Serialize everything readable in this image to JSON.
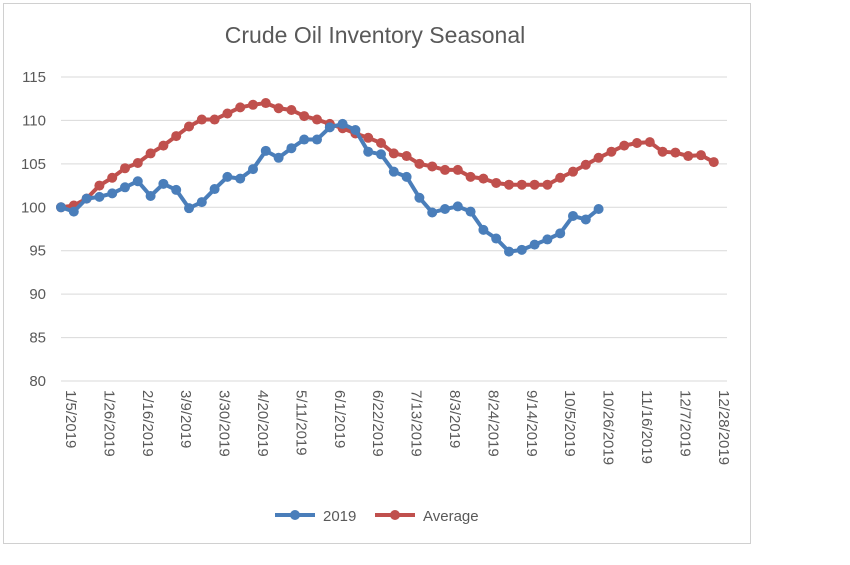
{
  "chart_data": {
    "type": "line",
    "title": "Crude Oil Inventory Seasonal",
    "xlabel": "",
    "ylabel": "",
    "ylim": [
      80,
      115
    ],
    "yticks": [
      "80",
      "85",
      "90",
      "95",
      "100",
      "105",
      "110",
      "115"
    ],
    "x_tick_labels": [
      "1/5/2019",
      "1/26/2019",
      "2/16/2019",
      "3/9/2019",
      "3/30/2019",
      "4/20/2019",
      "5/11/2019",
      "6/1/2019",
      "6/22/2019",
      "7/13/2019",
      "8/3/2019",
      "8/24/2019",
      "9/14/2019",
      "10/5/2019",
      "10/26/2019",
      "11/16/2019",
      "12/7/2019",
      "12/28/2019"
    ],
    "grid": true,
    "legend_position": "bottom",
    "series": [
      {
        "name": "2019",
        "color": "#4a7eba",
        "values": [
          100.0,
          99.5,
          101.0,
          101.2,
          101.6,
          102.3,
          103.0,
          101.3,
          102.7,
          102.0,
          99.9,
          100.6,
          102.1,
          103.5,
          103.3,
          104.4,
          106.5,
          105.7,
          106.8,
          107.8,
          107.8,
          109.2,
          109.6,
          108.9,
          106.4,
          106.1,
          104.1,
          103.5,
          101.1,
          99.4,
          99.8,
          100.1,
          99.5,
          97.4,
          96.4,
          94.9,
          95.1,
          95.7,
          96.3,
          97.0,
          99.0,
          98.6,
          99.8
        ]
      },
      {
        "name": "Average",
        "color": "#c0504d",
        "values": [
          100.0,
          100.2,
          101.0,
          102.5,
          103.4,
          104.5,
          105.1,
          106.2,
          107.1,
          108.2,
          109.3,
          110.1,
          110.1,
          110.8,
          111.5,
          111.8,
          112.0,
          111.4,
          111.2,
          110.5,
          110.1,
          109.6,
          109.1,
          108.5,
          108.0,
          107.4,
          106.2,
          105.9,
          105.0,
          104.7,
          104.3,
          104.3,
          103.5,
          103.3,
          102.8,
          102.6,
          102.6,
          102.6,
          102.6,
          103.4,
          104.1,
          104.9,
          105.7,
          106.4,
          107.1,
          107.4,
          107.5,
          106.4,
          106.3,
          105.9,
          106.0,
          105.2
        ]
      }
    ]
  }
}
